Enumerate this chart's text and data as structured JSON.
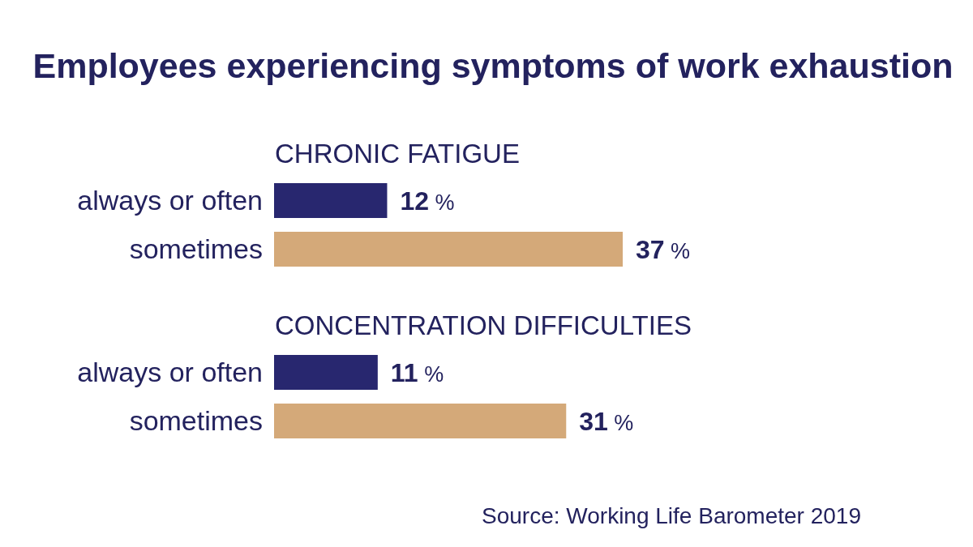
{
  "chart_data": {
    "type": "bar",
    "orientation": "horizontal",
    "title": "Employees experiencing symptoms of work exhaustion",
    "categories": [
      "CHRONIC FATIGUE",
      "CONCENTRATION DIFFICULTIES"
    ],
    "series": [
      {
        "name": "always or often",
        "color": "#28276f",
        "values": [
          12,
          11
        ],
        "value_labels": [
          "12 %",
          "11 %"
        ]
      },
      {
        "name": "sometimes",
        "color": "#d4a979",
        "values": [
          37,
          31
        ],
        "value_labels": [
          "37 %",
          "31 %"
        ]
      }
    ],
    "annotations": [
      "Source: Working Life Barometer 2019"
    ]
  }
}
